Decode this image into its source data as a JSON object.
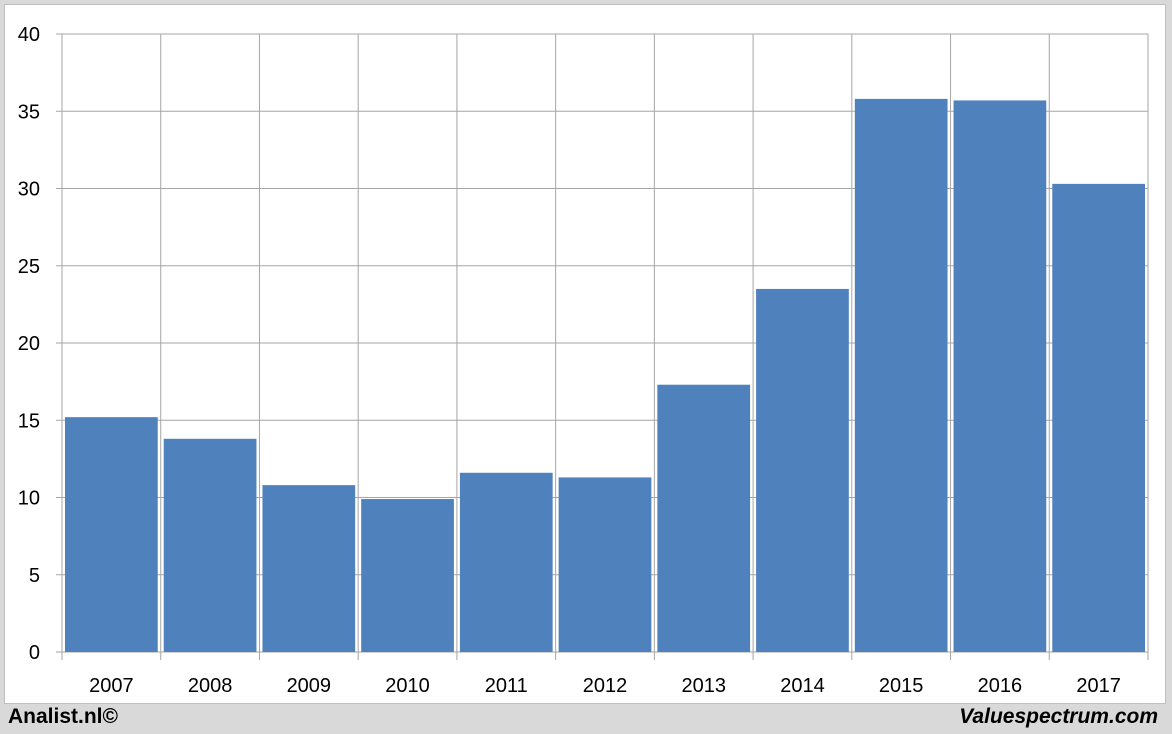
{
  "chart_data": {
    "type": "bar",
    "categories": [
      "2007",
      "2008",
      "2009",
      "2010",
      "2011",
      "2012",
      "2013",
      "2014",
      "2015",
      "2016",
      "2017"
    ],
    "values": [
      15.2,
      13.8,
      10.8,
      9.9,
      11.6,
      11.3,
      17.3,
      23.5,
      35.8,
      35.7,
      30.3
    ],
    "title": "",
    "xlabel": "",
    "ylabel": "",
    "ylim": [
      0,
      40
    ],
    "yticks": [
      0,
      5,
      10,
      15,
      20,
      25,
      30,
      35,
      40
    ],
    "grid": true,
    "bar_color": "#4f81bd",
    "grid_color": "#a6a6a6"
  },
  "footer": {
    "left": "Analist.nl©",
    "right": "Valuespectrum.com"
  }
}
